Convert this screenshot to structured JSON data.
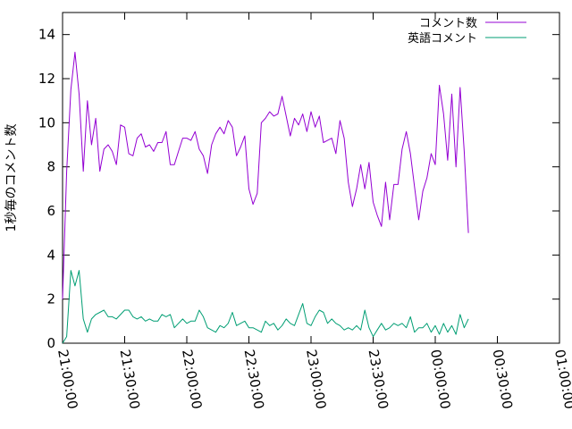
{
  "chart_data": {
    "type": "line",
    "title": "",
    "xlabel": "",
    "ylabel": "1秒毎のコメント数",
    "xlim": [
      "21:00:00",
      "01:00:00"
    ],
    "ylim": [
      0,
      15
    ],
    "xticks": [
      "21:00:00",
      "21:30:00",
      "22:00:00",
      "22:30:00",
      "23:00:00",
      "23:30:00",
      "00:00:00",
      "00:30:00",
      "01:00:00"
    ],
    "yticks": [
      0,
      2,
      4,
      6,
      8,
      10,
      12,
      14
    ],
    "grid": false,
    "legend_position": "top-right",
    "x_step_minutes": 2,
    "x_start": "21:00:00",
    "series": [
      {
        "name": "コメント数",
        "color": "#9400d3",
        "values": [
          2.0,
          7.8,
          11.5,
          13.2,
          11.3,
          7.8,
          11.0,
          9.0,
          10.2,
          7.8,
          8.8,
          9.0,
          8.7,
          8.1,
          9.9,
          9.8,
          8.6,
          8.5,
          9.3,
          9.5,
          8.9,
          9.0,
          8.7,
          9.1,
          9.1,
          9.6,
          8.1,
          8.1,
          8.7,
          9.3,
          9.3,
          9.2,
          9.6,
          8.8,
          8.5,
          7.7,
          9.0,
          9.5,
          9.8,
          9.5,
          10.1,
          9.8,
          8.5,
          8.9,
          9.4,
          7.0,
          6.3,
          6.8,
          10.0,
          10.2,
          10.5,
          10.3,
          10.4,
          11.2,
          10.3,
          9.4,
          10.2,
          9.9,
          10.4,
          9.6,
          10.5,
          9.8,
          10.3,
          9.1,
          9.2,
          9.3,
          8.6,
          10.1,
          9.3,
          7.3,
          6.2,
          7.0,
          8.1,
          7.0,
          8.2,
          6.4,
          5.8,
          5.3,
          7.3,
          5.6,
          7.2,
          7.2,
          8.8,
          9.6,
          8.6,
          7.1,
          5.6,
          6.9,
          7.5,
          8.6,
          8.1,
          11.7,
          10.4,
          8.3,
          11.3,
          8.0,
          11.6,
          8.7,
          5.0
        ]
      },
      {
        "name": "英語コメント",
        "color": "#009e73",
        "values": [
          0.0,
          0.3,
          3.3,
          2.6,
          3.3,
          1.1,
          0.5,
          1.1,
          1.3,
          1.4,
          1.5,
          1.2,
          1.2,
          1.1,
          1.3,
          1.5,
          1.5,
          1.2,
          1.1,
          1.2,
          1.0,
          1.1,
          1.0,
          1.0,
          1.3,
          1.2,
          1.3,
          0.7,
          0.9,
          1.1,
          0.9,
          1.0,
          1.0,
          1.5,
          1.2,
          0.7,
          0.6,
          0.5,
          0.8,
          0.7,
          0.9,
          1.4,
          0.8,
          0.9,
          1.0,
          0.7,
          0.7,
          0.6,
          0.5,
          1.0,
          0.8,
          0.9,
          0.6,
          0.8,
          1.1,
          0.9,
          0.8,
          1.3,
          1.8,
          0.9,
          0.8,
          1.2,
          1.5,
          1.4,
          0.9,
          1.1,
          0.9,
          0.8,
          0.6,
          0.7,
          0.6,
          0.8,
          0.6,
          1.5,
          0.7,
          0.3,
          0.6,
          0.9,
          0.6,
          0.7,
          0.9,
          0.8,
          0.9,
          0.7,
          1.2,
          0.5,
          0.7,
          0.7,
          0.9,
          0.5,
          0.8,
          0.4,
          0.9,
          0.5,
          0.8,
          0.4,
          1.3,
          0.7,
          1.1
        ]
      }
    ]
  }
}
